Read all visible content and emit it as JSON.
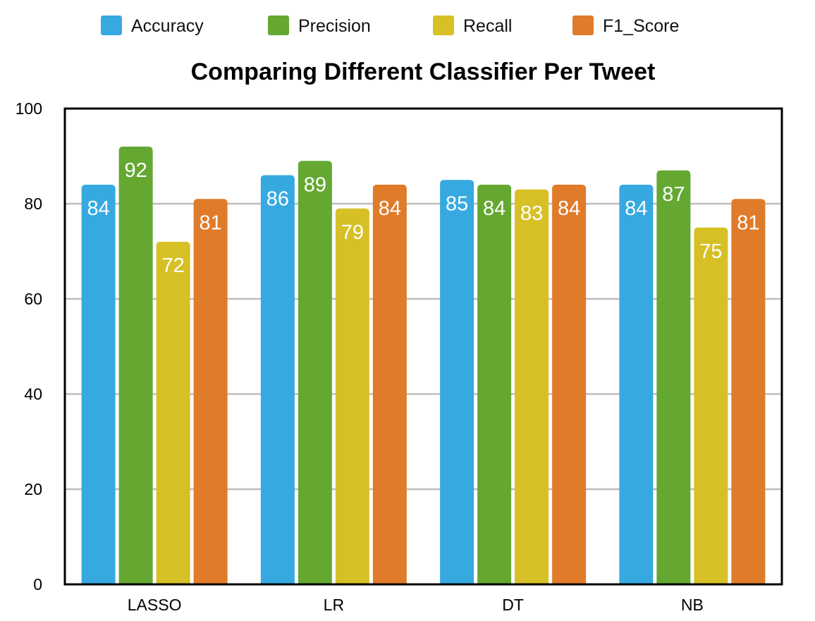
{
  "chart_data": {
    "type": "bar",
    "title": "Comparing Different Classifier Per Tweet",
    "xlabel": "",
    "ylabel": "",
    "categories": [
      "LASSO",
      "LR",
      "DT",
      "NB"
    ],
    "series": [
      {
        "name": "Accuracy",
        "color": "#36a9e1",
        "values": [
          84,
          86,
          85,
          84
        ]
      },
      {
        "name": "Precision",
        "color": "#64a832",
        "values": [
          92,
          89,
          84,
          87
        ]
      },
      {
        "name": "Recall",
        "color": "#d6c026",
        "values": [
          72,
          79,
          83,
          75
        ]
      },
      {
        "name": "F1_Score",
        "color": "#e07b2a",
        "values": [
          81,
          84,
          84,
          81
        ]
      }
    ],
    "ylim": [
      0,
      100
    ],
    "yticks": [
      0,
      20,
      40,
      60,
      80,
      100
    ],
    "grid": true,
    "legend_position": "top",
    "data_labels": true
  }
}
